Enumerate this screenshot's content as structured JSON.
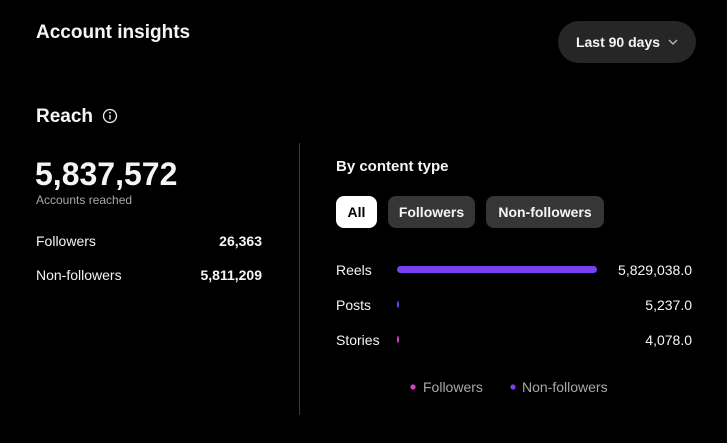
{
  "header": {
    "title": "Account insights",
    "range_button": "Last 90 days"
  },
  "reach": {
    "title": "Reach",
    "total": "5,837,572",
    "total_caption": "Accounts reached",
    "rows": [
      {
        "label": "Followers",
        "value": "26,363"
      },
      {
        "label": "Non-followers",
        "value": "5,811,209"
      }
    ]
  },
  "content_type": {
    "title": "By content type",
    "filters": [
      "All",
      "Followers",
      "Non-followers"
    ],
    "categories": [
      "Reels",
      "Posts",
      "Stories"
    ],
    "totals": [
      5829038,
      5237,
      4078
    ],
    "total_labels": [
      "5,829,038.0",
      "5,237.0",
      "4,078.0"
    ],
    "series": [
      {
        "name": "Followers",
        "color": "#d63fd1",
        "values": [
          0,
          0,
          4078
        ]
      },
      {
        "name": "Non-followers",
        "color": "#7b3ff2",
        "values": [
          5829038,
          5237,
          0
        ]
      }
    ]
  }
}
